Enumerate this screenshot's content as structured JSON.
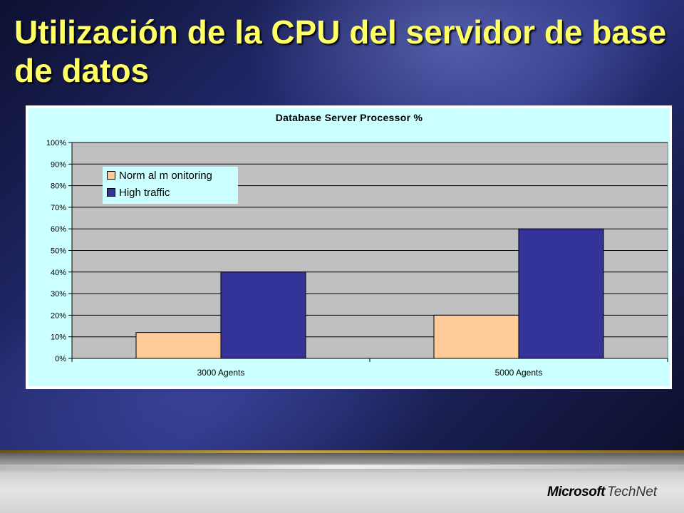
{
  "slide": {
    "title": "Utilización de la CPU del servidor de base de datos",
    "logo": {
      "brand": "Microsoft",
      "product": "TechNet"
    }
  },
  "colors": {
    "title": "#ffff66",
    "plot_background": "#c0c0c0",
    "chart_background": "#ccffff"
  },
  "chart_data": {
    "type": "bar",
    "title": "Database Server Processor %",
    "categories": [
      "3000 Agents",
      "5000 Agents"
    ],
    "series": [
      {
        "name": "Norm al m onitoring",
        "values": [
          12,
          20
        ],
        "color": "#ffcc99"
      },
      {
        "name": "High traffic",
        "values": [
          40,
          60
        ],
        "color": "#333399"
      }
    ],
    "ylim": [
      0,
      100
    ],
    "yticks": [
      "0%",
      "10%",
      "20%",
      "30%",
      "40%",
      "50%",
      "60%",
      "70%",
      "80%",
      "90%",
      "100%"
    ],
    "grid": true,
    "legend_position": "top-left"
  }
}
